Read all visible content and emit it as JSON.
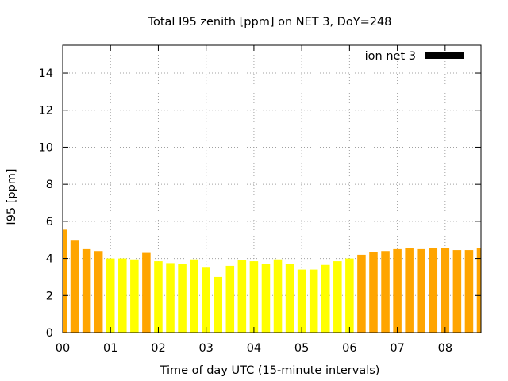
{
  "chart_data": {
    "type": "bar",
    "title": "Total I95 zenith [ppm] on NET 3, DoY=248",
    "xlabel": "Time of day UTC (15-minute intervals)",
    "ylabel": "I95 [ppm]",
    "ylim": [
      0,
      15.5
    ],
    "yticks": [
      "0",
      "2",
      "4",
      "6",
      "8",
      "10",
      "12",
      "14"
    ],
    "xlim_hours": [
      0,
      8.75
    ],
    "xticks": [
      "00",
      "01",
      "02",
      "03",
      "04",
      "05",
      "06",
      "07",
      "08"
    ],
    "grid": true,
    "legend": {
      "label": "ion net 3",
      "color": "#000000",
      "position": "top-right"
    },
    "colors": {
      "orange": "#ffa500",
      "yellow": "#ffff00"
    },
    "series": [
      {
        "x_hours": [
          0,
          0.25,
          0.5,
          0.75,
          1.0,
          1.25,
          1.5,
          1.75,
          2.0,
          2.25,
          2.5,
          2.75,
          3.0,
          3.25,
          3.5,
          3.75,
          4.0,
          4.25,
          4.5,
          4.75,
          5.0,
          5.25,
          5.5,
          5.75,
          6.0,
          6.25,
          6.5,
          6.75,
          7.0,
          7.25,
          7.5,
          7.75,
          8.0,
          8.25,
          8.5,
          8.75
        ],
        "values": [
          5.55,
          5.0,
          4.5,
          4.4,
          4.0,
          4.0,
          3.95,
          4.3,
          3.85,
          3.75,
          3.7,
          3.95,
          3.5,
          3.0,
          3.6,
          3.9,
          3.85,
          3.7,
          3.95,
          3.7,
          3.4,
          3.4,
          3.65,
          3.85,
          4.0,
          4.2,
          4.35,
          4.4,
          4.5,
          4.55,
          4.5,
          4.55,
          4.55,
          4.45,
          4.45,
          4.55
        ],
        "bar_colors": [
          "orange",
          "orange",
          "orange",
          "orange",
          "yellow",
          "yellow",
          "yellow",
          "orange",
          "yellow",
          "yellow",
          "yellow",
          "yellow",
          "yellow",
          "yellow",
          "yellow",
          "yellow",
          "yellow",
          "yellow",
          "yellow",
          "yellow",
          "yellow",
          "yellow",
          "yellow",
          "yellow",
          "yellow",
          "orange",
          "orange",
          "orange",
          "orange",
          "orange",
          "orange",
          "orange",
          "orange",
          "orange",
          "orange",
          "orange"
        ]
      }
    ]
  }
}
